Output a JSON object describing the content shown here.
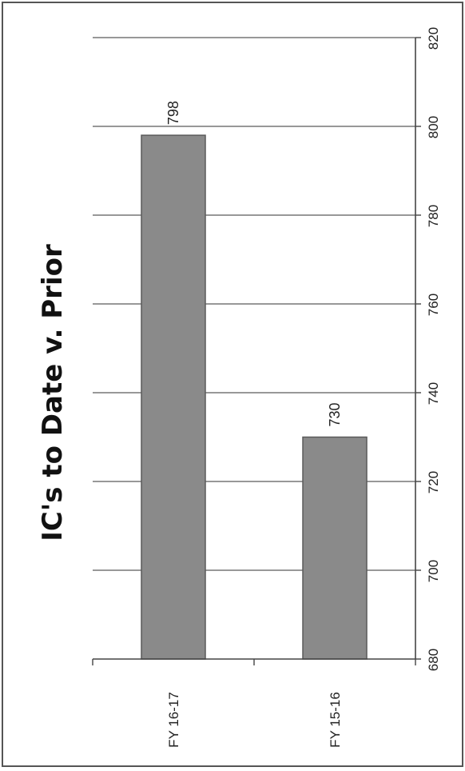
{
  "chart_data": {
    "type": "bar",
    "orientation": "vertical",
    "title": "IC's to Date v. Prior",
    "categories": [
      "FY 16-17",
      "FY 15-16"
    ],
    "values": [
      798,
      730
    ],
    "data_labels": [
      "798",
      "730"
    ],
    "xlabel": "",
    "ylabel": "",
    "ylim": [
      680,
      820
    ],
    "y_ticks": [
      "680",
      "700",
      "720",
      "740",
      "760",
      "780",
      "800",
      "820"
    ],
    "grid": true,
    "legend": "none",
    "bar_color": "#8a8a8a",
    "page_rotation": "rotated 90 degrees counter-clockwise"
  }
}
